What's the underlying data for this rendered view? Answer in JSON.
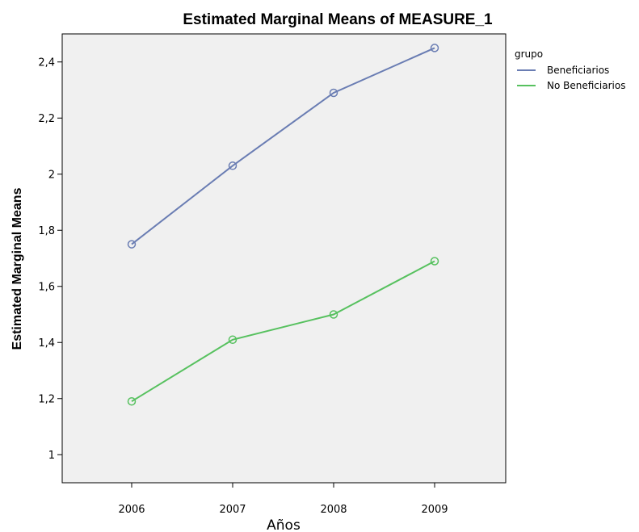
{
  "chart_data": {
    "type": "line",
    "title": "Estimated Marginal Means of MEASURE_1",
    "xlabel": "Años",
    "ylabel": "Estimated Marginal Means",
    "categories": [
      "2006",
      "2007",
      "2008",
      "2009"
    ],
    "ylim": [
      0.9,
      2.5
    ],
    "yticks": [
      1,
      1.2,
      1.4,
      1.6,
      1.8,
      2,
      2.2,
      2.4
    ],
    "ytick_labels": [
      "1",
      "1,2",
      "1,4",
      "1,6",
      "1,8",
      "2",
      "2,2",
      "2,4"
    ],
    "grid": false,
    "legend": {
      "title": "grupo",
      "placement": "right"
    },
    "series": [
      {
        "name": "Beneficiarios",
        "values": [
          1.75,
          2.03,
          2.29,
          2.45
        ],
        "color": "#6a7db3"
      },
      {
        "name": "No Beneficiarios",
        "values": [
          1.19,
          1.41,
          1.5,
          1.69
        ],
        "color": "#57c15f"
      }
    ],
    "plot_background": "#f0f0f0"
  }
}
